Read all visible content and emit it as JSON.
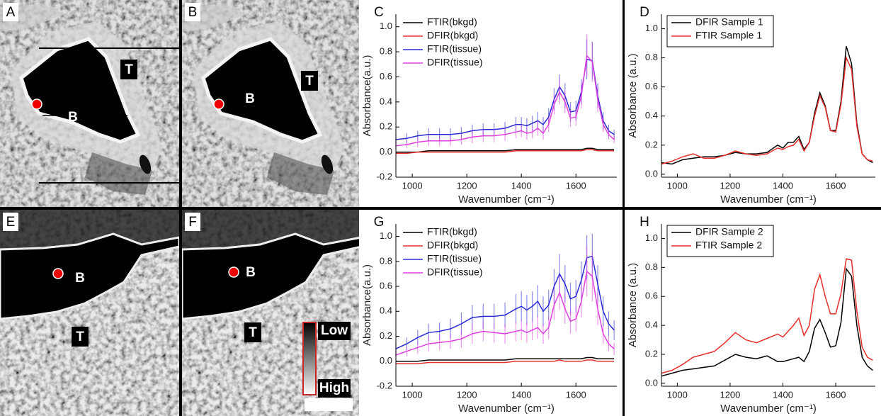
{
  "panels": [
    {
      "label": "A",
      "lumen": "B",
      "tissue": "T"
    },
    {
      "label": "B",
      "lumen": "B",
      "tissue": "T"
    },
    {
      "label": "E",
      "lumen": "B",
      "tissue": "T"
    },
    {
      "label": "F",
      "lumen": "B",
      "tissue": "T",
      "scale_low": "Low",
      "scale_high": "High"
    }
  ],
  "chart_data": [
    {
      "type": "line",
      "panel_label": "C",
      "x_label": "Wavenumber (cm⁻¹)",
      "y_label": "Absorbance(a.u.)",
      "legend": "upper left",
      "legend_frame": false,
      "xlim": [
        940,
        1750
      ],
      "xticks": [
        1000,
        1200,
        1400,
        1600
      ],
      "ylim": [
        -0.2,
        1.1
      ],
      "yticks": [
        -0.2,
        {
          "value": 0,
          "label": "0.0"
        },
        0.2,
        0.4,
        0.6,
        0.8,
        {
          "value": 1,
          "label": "1.0"
        }
      ],
      "x": [
        940,
        980,
        1020,
        1060,
        1100,
        1140,
        1180,
        1220,
        1260,
        1300,
        1340,
        1380,
        1400,
        1420,
        1440,
        1460,
        1480,
        1500,
        1520,
        1540,
        1560,
        1580,
        1600,
        1620,
        1640,
        1660,
        1680,
        1700,
        1720,
        1740
      ],
      "series": [
        {
          "name": "FTIR(bkgd)",
          "color": "#000000",
          "values": [
            0.0,
            0.0,
            0.0,
            0.01,
            0.01,
            0.01,
            0.01,
            0.01,
            0.01,
            0.01,
            0.01,
            0.02,
            0.02,
            0.02,
            0.02,
            0.02,
            0.02,
            0.02,
            0.02,
            0.02,
            0.02,
            0.02,
            0.02,
            0.02,
            0.03,
            0.03,
            0.02,
            0.02,
            0.02,
            0.02
          ]
        },
        {
          "name": "DFIR(bkgd)",
          "color": "#e8302a",
          "values": [
            -0.01,
            -0.01,
            0.0,
            0.0,
            0.0,
            0.0,
            0.0,
            0.0,
            0.0,
            0.0,
            0.0,
            0.01,
            0.01,
            0.01,
            0.01,
            0.01,
            0.01,
            0.01,
            0.01,
            0.01,
            0.01,
            0.01,
            0.01,
            0.01,
            0.02,
            0.02,
            0.01,
            0.01,
            0.01,
            0.01
          ]
        },
        {
          "name": "FTIR(tissue)",
          "color": "#2b2bd6",
          "values": [
            0.1,
            0.11,
            0.13,
            0.14,
            0.14,
            0.14,
            0.15,
            0.17,
            0.18,
            0.18,
            0.19,
            0.22,
            0.22,
            0.21,
            0.23,
            0.25,
            0.22,
            0.28,
            0.42,
            0.52,
            0.45,
            0.32,
            0.33,
            0.48,
            0.74,
            0.73,
            0.45,
            0.25,
            0.17,
            0.14
          ],
          "errors": [
            0.04,
            0.04,
            0.04,
            0.05,
            0.05,
            0.05,
            0.05,
            0.05,
            0.05,
            0.05,
            0.05,
            0.06,
            0.06,
            0.06,
            0.06,
            0.07,
            0.06,
            0.07,
            0.09,
            0.1,
            0.1,
            0.08,
            0.08,
            0.1,
            0.16,
            0.15,
            0.1,
            0.07,
            0.05,
            0.04
          ]
        },
        {
          "name": "DFIR(tissue)",
          "color": "#e040e0",
          "values": [
            0.05,
            0.06,
            0.08,
            0.09,
            0.09,
            0.09,
            0.1,
            0.12,
            0.13,
            0.13,
            0.14,
            0.16,
            0.17,
            0.15,
            0.16,
            0.19,
            0.15,
            0.22,
            0.38,
            0.48,
            0.4,
            0.27,
            0.28,
            0.45,
            0.77,
            0.72,
            0.42,
            0.22,
            0.14,
            0.1
          ],
          "errors": [
            0.03,
            0.03,
            0.04,
            0.04,
            0.04,
            0.04,
            0.04,
            0.05,
            0.05,
            0.05,
            0.05,
            0.05,
            0.05,
            0.05,
            0.05,
            0.06,
            0.05,
            0.06,
            0.08,
            0.1,
            0.09,
            0.07,
            0.07,
            0.1,
            0.17,
            0.16,
            0.1,
            0.06,
            0.04,
            0.03
          ]
        }
      ]
    },
    {
      "type": "line",
      "panel_label": "D",
      "x_label": "Wavenumber (cm⁻¹)",
      "y_label": "Absorbance (a.u.)",
      "legend": "upper left",
      "legend_frame": true,
      "xlim": [
        940,
        1750
      ],
      "xticks": [
        1000,
        1200,
        1400,
        1600
      ],
      "ylim": [
        -0.02,
        1.1
      ],
      "yticks": [
        {
          "value": 0,
          "label": "0.0"
        },
        0.2,
        0.4,
        0.6,
        0.8,
        {
          "value": 1,
          "label": "1.0"
        }
      ],
      "x": [
        940,
        980,
        1020,
        1060,
        1100,
        1140,
        1180,
        1220,
        1260,
        1300,
        1340,
        1380,
        1400,
        1420,
        1440,
        1460,
        1480,
        1500,
        1520,
        1540,
        1560,
        1580,
        1600,
        1620,
        1640,
        1660,
        1680,
        1700,
        1720,
        1740
      ],
      "series": [
        {
          "name": "DFIR Sample 1",
          "color": "#000000",
          "values": [
            0.08,
            0.07,
            0.1,
            0.11,
            0.12,
            0.12,
            0.13,
            0.15,
            0.14,
            0.14,
            0.15,
            0.2,
            0.18,
            0.22,
            0.22,
            0.26,
            0.17,
            0.22,
            0.42,
            0.56,
            0.47,
            0.3,
            0.3,
            0.5,
            0.88,
            0.76,
            0.35,
            0.14,
            0.1,
            0.08
          ]
        },
        {
          "name": "FTIR Sample 1",
          "color": "#e8302a",
          "values": [
            0.07,
            0.09,
            0.12,
            0.14,
            0.11,
            0.11,
            0.13,
            0.16,
            0.14,
            0.13,
            0.14,
            0.18,
            0.17,
            0.19,
            0.2,
            0.24,
            0.16,
            0.22,
            0.4,
            0.54,
            0.46,
            0.3,
            0.29,
            0.48,
            0.8,
            0.72,
            0.33,
            0.14,
            0.1,
            0.09
          ]
        }
      ]
    },
    {
      "type": "line",
      "panel_label": "G",
      "x_label": "Wavenumber (cm⁻¹)",
      "y_label": "Absorbance(a.u.)",
      "legend": "upper left",
      "legend_frame": false,
      "xlim": [
        940,
        1750
      ],
      "xticks": [
        1000,
        1200,
        1400,
        1600
      ],
      "ylim": [
        -0.2,
        1.1
      ],
      "yticks": [
        -0.2,
        {
          "value": 0,
          "label": "0.0"
        },
        0.2,
        0.4,
        0.6,
        0.8,
        {
          "value": 1,
          "label": "1.0"
        }
      ],
      "x": [
        940,
        980,
        1020,
        1060,
        1100,
        1140,
        1180,
        1220,
        1260,
        1300,
        1340,
        1380,
        1400,
        1420,
        1440,
        1460,
        1480,
        1500,
        1520,
        1540,
        1560,
        1580,
        1600,
        1620,
        1640,
        1660,
        1680,
        1700,
        1720,
        1740
      ],
      "series": [
        {
          "name": "FTIR(bkgd)",
          "color": "#000000",
          "values": [
            0.0,
            0.0,
            0.0,
            0.01,
            0.01,
            0.01,
            0.01,
            0.01,
            0.01,
            0.01,
            0.01,
            0.02,
            0.02,
            0.02,
            0.02,
            0.02,
            0.02,
            0.02,
            0.02,
            0.02,
            0.02,
            0.02,
            0.02,
            0.02,
            0.03,
            0.03,
            0.02,
            0.02,
            0.02,
            0.02
          ]
        },
        {
          "name": "DFIR(bkgd)",
          "color": "#e8302a",
          "values": [
            -0.02,
            -0.02,
            -0.02,
            -0.01,
            -0.01,
            -0.01,
            -0.01,
            -0.01,
            -0.01,
            -0.01,
            -0.01,
            0.0,
            0.0,
            0.0,
            0.0,
            0.0,
            0.0,
            0.0,
            0.0,
            0.01,
            0.0,
            0.0,
            0.0,
            0.0,
            0.01,
            0.01,
            0.0,
            0.0,
            0.0,
            0.0
          ]
        },
        {
          "name": "FTIR(tissue)",
          "color": "#2b2bd6",
          "values": [
            0.1,
            0.14,
            0.19,
            0.23,
            0.24,
            0.26,
            0.3,
            0.35,
            0.36,
            0.36,
            0.37,
            0.42,
            0.44,
            0.41,
            0.44,
            0.48,
            0.4,
            0.45,
            0.6,
            0.7,
            0.62,
            0.5,
            0.52,
            0.65,
            0.83,
            0.84,
            0.62,
            0.4,
            0.3,
            0.25
          ],
          "errors": [
            0.05,
            0.05,
            0.06,
            0.07,
            0.07,
            0.08,
            0.09,
            0.1,
            0.1,
            0.1,
            0.1,
            0.12,
            0.12,
            0.12,
            0.12,
            0.13,
            0.12,
            0.12,
            0.14,
            0.16,
            0.15,
            0.13,
            0.13,
            0.15,
            0.18,
            0.18,
            0.15,
            0.12,
            0.1,
            0.08
          ]
        },
        {
          "name": "DFIR(tissue)",
          "color": "#e040e0",
          "values": [
            0.05,
            0.08,
            0.11,
            0.14,
            0.15,
            0.16,
            0.18,
            0.22,
            0.24,
            0.23,
            0.22,
            0.24,
            0.25,
            0.23,
            0.25,
            0.27,
            0.22,
            0.27,
            0.45,
            0.55,
            0.42,
            0.32,
            0.34,
            0.48,
            0.72,
            0.68,
            0.42,
            0.22,
            0.14,
            0.1
          ],
          "errors": [
            0.04,
            0.04,
            0.05,
            0.06,
            0.06,
            0.06,
            0.07,
            0.08,
            0.08,
            0.08,
            0.08,
            0.08,
            0.08,
            0.08,
            0.08,
            0.09,
            0.08,
            0.09,
            0.12,
            0.14,
            0.12,
            0.1,
            0.1,
            0.13,
            0.2,
            0.2,
            0.13,
            0.08,
            0.06,
            0.05
          ]
        }
      ]
    },
    {
      "type": "line",
      "panel_label": "H",
      "x_label": "Wavenumber (cm⁻¹)",
      "y_label": "Absorbance (a.u.)",
      "legend": "upper left",
      "legend_frame": true,
      "xlim": [
        940,
        1750
      ],
      "xticks": [
        1000,
        1200,
        1400,
        1600
      ],
      "ylim": [
        -0.02,
        1.1
      ],
      "yticks": [
        {
          "value": 0,
          "label": "0.0"
        },
        0.2,
        0.4,
        0.6,
        0.8,
        {
          "value": 1,
          "label": "1.0"
        }
      ],
      "x": [
        940,
        980,
        1020,
        1060,
        1100,
        1140,
        1180,
        1220,
        1260,
        1300,
        1340,
        1380,
        1400,
        1420,
        1440,
        1460,
        1480,
        1500,
        1520,
        1540,
        1560,
        1580,
        1600,
        1620,
        1640,
        1660,
        1680,
        1700,
        1720,
        1740
      ],
      "series": [
        {
          "name": "DFIR Sample 2",
          "color": "#000000",
          "values": [
            0.05,
            0.07,
            0.09,
            0.1,
            0.11,
            0.12,
            0.16,
            0.2,
            0.18,
            0.17,
            0.19,
            0.15,
            0.15,
            0.16,
            0.17,
            0.18,
            0.15,
            0.22,
            0.38,
            0.44,
            0.35,
            0.25,
            0.26,
            0.42,
            0.79,
            0.74,
            0.4,
            0.18,
            0.12,
            0.09
          ]
        },
        {
          "name": "FTIR Sample 2",
          "color": "#e8302a",
          "values": [
            0.07,
            0.09,
            0.13,
            0.18,
            0.2,
            0.22,
            0.28,
            0.35,
            0.3,
            0.28,
            0.31,
            0.34,
            0.32,
            0.36,
            0.4,
            0.45,
            0.33,
            0.4,
            0.65,
            0.75,
            0.6,
            0.48,
            0.48,
            0.62,
            0.86,
            0.85,
            0.5,
            0.25,
            0.18,
            0.16
          ]
        }
      ]
    }
  ]
}
